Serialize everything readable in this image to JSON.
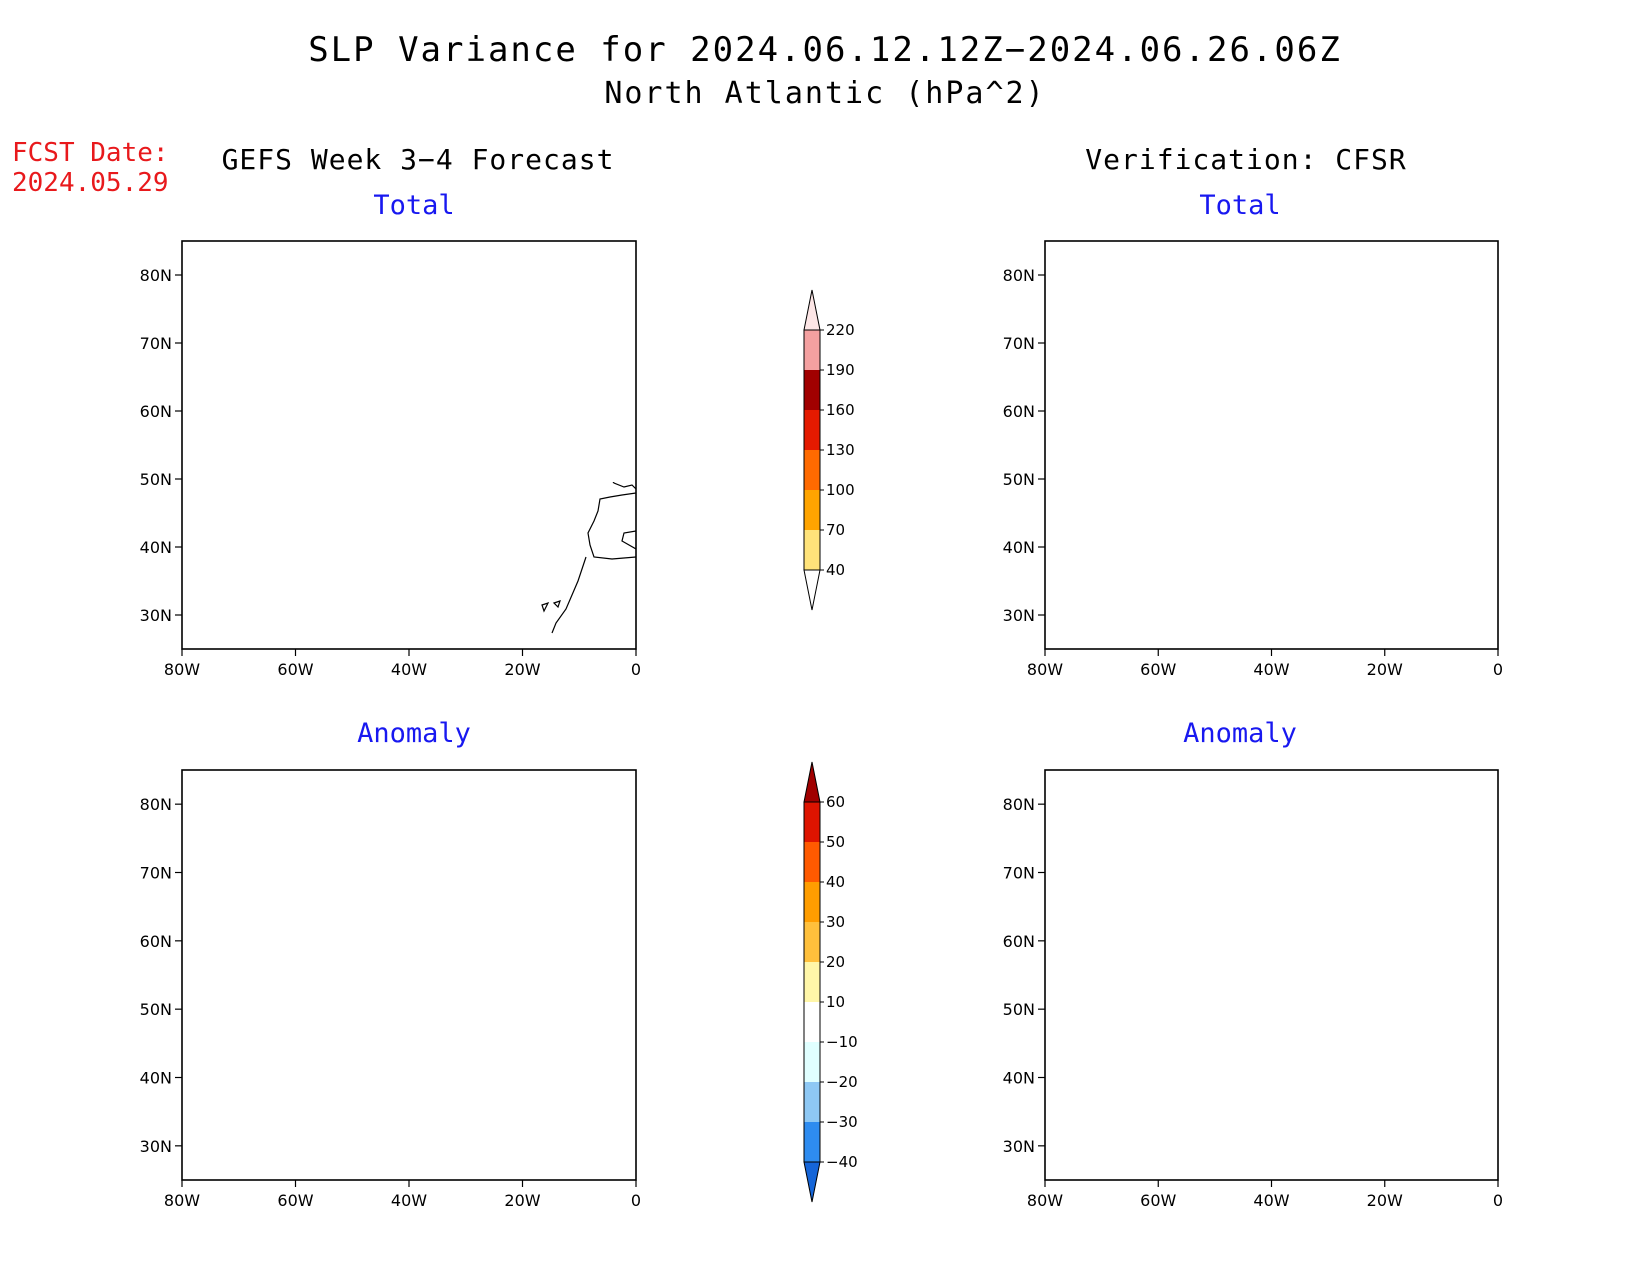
{
  "title": {
    "line1": "SLP Variance for 2024.06.12.12Z−2024.06.26.06Z",
    "line2": "North Atlantic (hPa^2)"
  },
  "forecast_date": {
    "label": "FCST Date:",
    "value": "2024.05.29"
  },
  "columns": {
    "left": "GEFS Week 3−4 Forecast",
    "right": "Verification: CFSR"
  },
  "panel_titles": {
    "total": "Total",
    "anomaly": "Anomaly"
  },
  "axes": {
    "lon_labels": [
      "80W",
      "60W",
      "40W",
      "20W",
      "0"
    ],
    "lon_values": [
      -80,
      -60,
      -40,
      -20,
      0
    ],
    "lat_labels": [
      "80N",
      "70N",
      "60N",
      "50N",
      "40N",
      "30N"
    ],
    "lat_values": [
      80,
      70,
      60,
      50,
      40,
      30
    ],
    "lon_range": [
      -80,
      0
    ],
    "lat_range": [
      25,
      85
    ]
  },
  "colorbars": {
    "total": {
      "labels": [
        "40",
        "70",
        "100",
        "130",
        "160",
        "190",
        "220"
      ],
      "colors": [
        "#ffe37a",
        "#ffa400",
        "#ff6a00",
        "#e41a00",
        "#a10000",
        "#f4a0a0",
        "#fde6e6"
      ]
    },
    "anomaly": {
      "labels": [
        "−40",
        "−30",
        "−20",
        "−10",
        "10",
        "20",
        "30",
        "40",
        "50",
        "60"
      ],
      "colors": [
        "#1565d8",
        "#2e8cf0",
        "#8ec8f4",
        "#e0ffff",
        "#ffffff",
        "#fff6a8",
        "#ffc03c",
        "#ff9d00",
        "#ff5a00",
        "#de1400",
        "#a00000"
      ]
    }
  },
  "map_colors": {
    "total_40_70": "#ffe482",
    "total_70_100": "#ffa500",
    "total_100_130": "#ff6600",
    "anom_10_20": "#fff8b0",
    "anom_20_30": "#ffc23c",
    "anom_30_40": "#ffa000",
    "anom_40_50": "#ff6400",
    "anom_50_60": "#e61e00",
    "anom_60_plus": "#a50000",
    "anom_neg_10_20": "#e0ffff",
    "anom_neg_20_30": "#90caf5"
  }
}
